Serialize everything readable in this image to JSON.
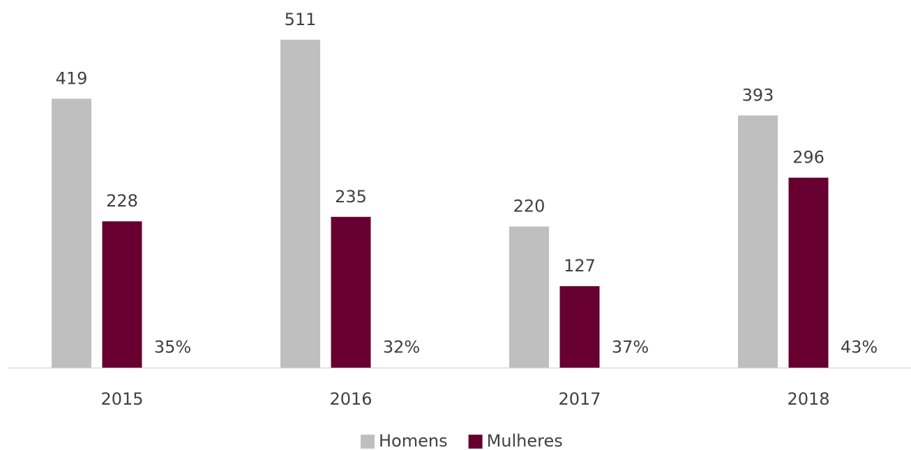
{
  "chart_data": {
    "type": "bar",
    "categories": [
      "2015",
      "2016",
      "2017",
      "2018"
    ],
    "series": [
      {
        "name": "Homens",
        "color": "#bfbfbf",
        "values": [
          419,
          511,
          220,
          393
        ]
      },
      {
        "name": "Mulheres",
        "color": "#670030",
        "values": [
          228,
          235,
          127,
          296
        ]
      },
      {
        "values": [
          0.35,
          0.32,
          0.37,
          0.43
        ],
        "value_labels": [
          "35%",
          "32%",
          "37%",
          "43%"
        ]
      }
    ],
    "ylim": [
      0,
      560
    ],
    "legend": "bottom"
  }
}
